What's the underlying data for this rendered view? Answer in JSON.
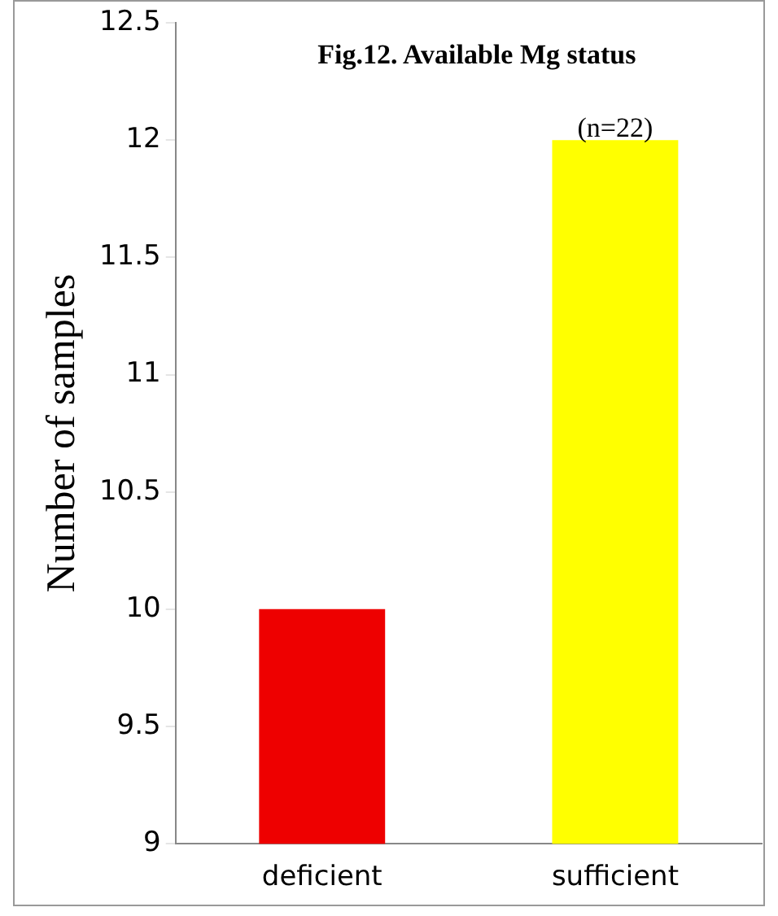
{
  "chart_data": {
    "type": "bar",
    "title": "Fig.12. Available Mg status",
    "ylabel": "Number of samples",
    "categories": [
      "deficient",
      "sufficient"
    ],
    "values": [
      10,
      12
    ],
    "colors": [
      "#ee0000",
      "#ffff00"
    ],
    "ylim": [
      9,
      12.5
    ],
    "yticks": [
      9,
      9.5,
      10,
      10.5,
      11,
      11.5,
      12,
      12.5
    ],
    "grid": false,
    "legend": false,
    "annotations": [
      {
        "text": "(n=22)",
        "x": "sufficient",
        "y": 12
      }
    ]
  }
}
